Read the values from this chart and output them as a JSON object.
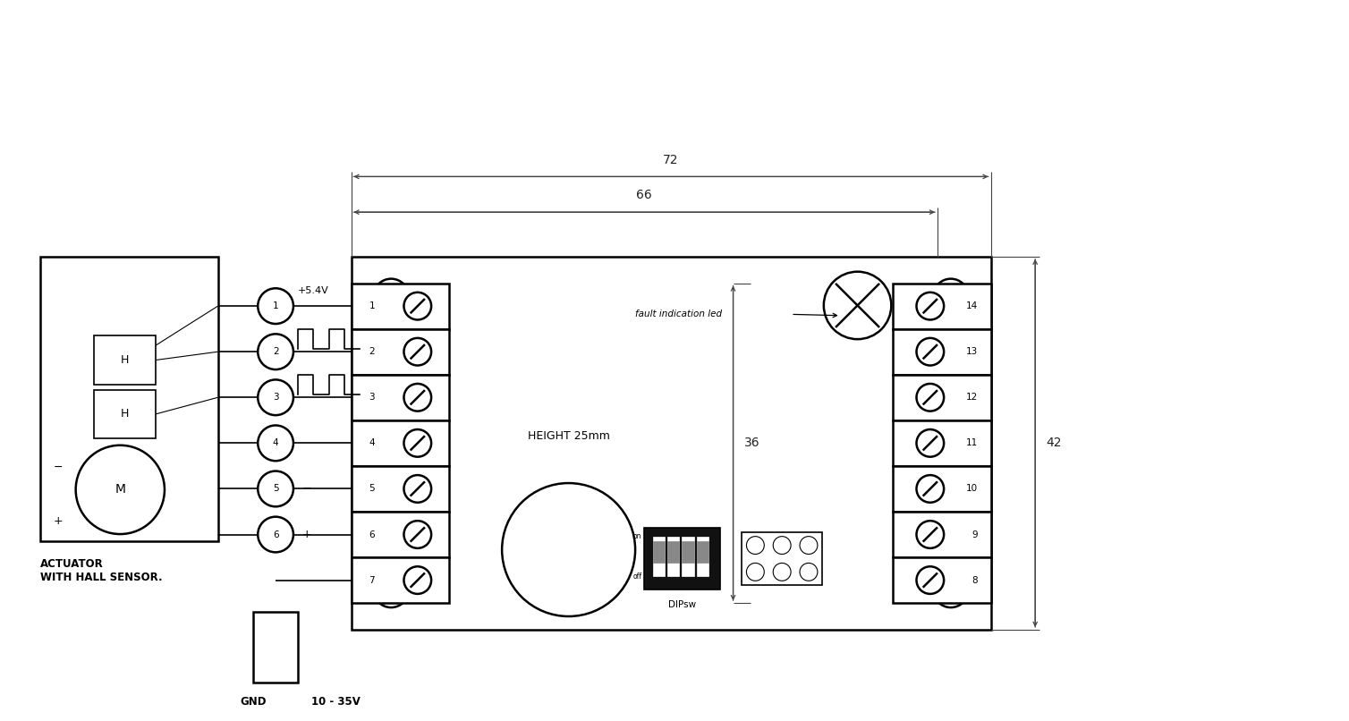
{
  "bg_color": "#ffffff",
  "line_color": "#000000",
  "dim_color": "#444444",
  "dim_72": "72",
  "dim_66": "66",
  "dim_36": "36",
  "dim_42": "42",
  "dim_height": "HEIGHT 25mm",
  "label_actuator": "ACTUATOR\nWITH HALL SENSOR.",
  "label_gnd": "GND",
  "label_power": "10 - 35V",
  "label_voltage": "+5.4V",
  "label_fault": "fault indication led",
  "label_dipsw": "DIPsw",
  "label_minus": "−",
  "label_plus": "+",
  "terminals_left_nums": [
    "1",
    "2",
    "3",
    "4",
    "5",
    "6",
    "7"
  ],
  "terminals_right_nums": [
    "14",
    "13",
    "12",
    "11",
    "10",
    "9",
    "8"
  ],
  "figsize": [
    15.08,
    8.06
  ],
  "dpi": 100
}
